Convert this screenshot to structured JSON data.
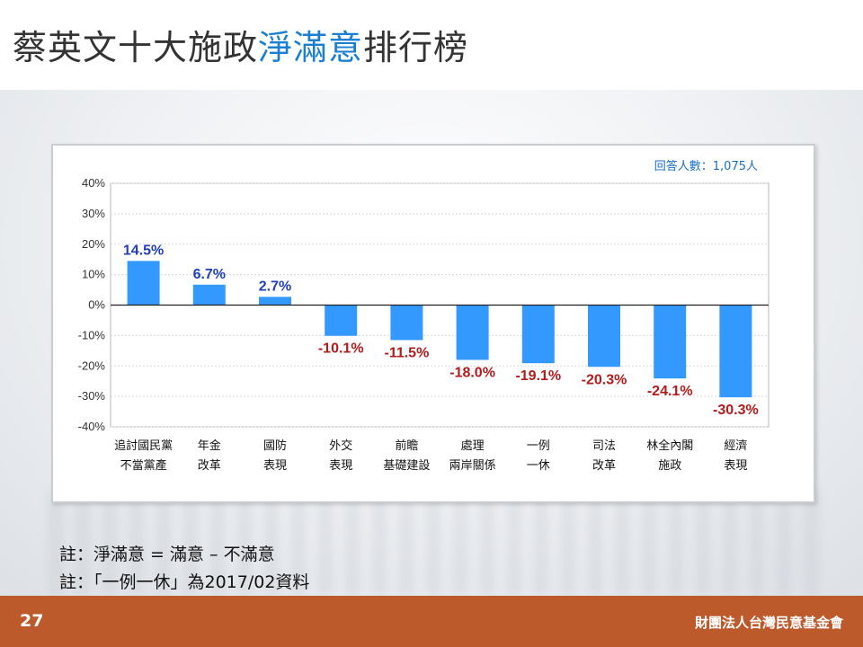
{
  "header": {
    "title_prefix": "蔡英文十大施政",
    "title_highlight": "淨滿意",
    "title_suffix": "排行榜"
  },
  "respondents": "回答人數：1,075人",
  "notes": [
    "註：淨滿意 = 滿意 – 不滿意",
    "註：「一例一休」為2017/02資料"
  ],
  "footer": {
    "page_number": "27",
    "organization": "財團法人台灣民意基金會"
  },
  "colors": {
    "bar": "#3399ff",
    "positive_label": "#1f3fbf",
    "negative_label": "#b31b1b",
    "title_highlight": "#1a7fd1",
    "footer": "#bc5a2c"
  },
  "chart_data": {
    "type": "bar",
    "categories": [
      [
        "追討國民黨",
        "不當黨產"
      ],
      [
        "年金",
        "改革"
      ],
      [
        "國防",
        "表現"
      ],
      [
        "外交",
        "表現"
      ],
      [
        "前瞻",
        "基礎建設"
      ],
      [
        "處理",
        "兩岸關係"
      ],
      [
        "一例",
        "一休"
      ],
      [
        "司法",
        "改革"
      ],
      [
        "林全內閣",
        "施政"
      ],
      [
        "經濟",
        "表現"
      ]
    ],
    "values": [
      14.5,
      6.7,
      2.7,
      -10.1,
      -11.5,
      -18.0,
      -19.1,
      -20.3,
      -24.1,
      -30.3
    ],
    "data_labels": [
      "14.5%",
      "6.7%",
      "2.7%",
      "-10.1%",
      "-11.5%",
      "-18.0%",
      "-19.1%",
      "-20.3%",
      "-24.1%",
      "-30.3%"
    ],
    "ylim": [
      -40,
      40
    ],
    "yticks": [
      40,
      30,
      20,
      10,
      0,
      -10,
      -20,
      -30,
      -40
    ],
    "ytick_labels": [
      "40%",
      "30%",
      "20%",
      "10%",
      "0%",
      "-10%",
      "-20%",
      "-30%",
      "-40%"
    ],
    "grid": true
  }
}
